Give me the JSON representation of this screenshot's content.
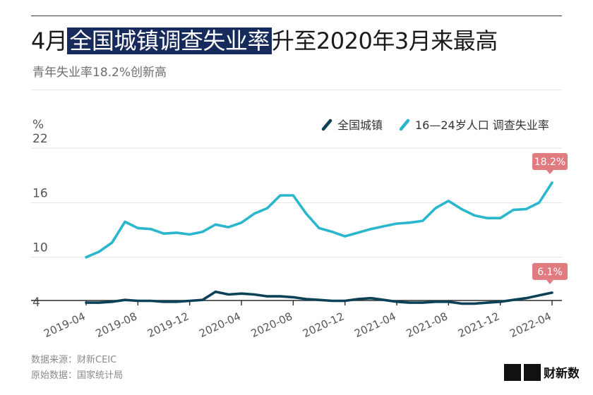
{
  "header": {
    "title_prefix": "4月",
    "title_highlight": "全国城镇调查失业率",
    "title_suffix": "升至2020年3月来最高",
    "subtitle": "青年失业率18.2%创新高"
  },
  "footer": {
    "source_line": "数据来源：财新CEIC",
    "original_line": "原始数据：国家统计局"
  },
  "logo": {
    "text": "财新数据"
  },
  "colors": {
    "urban": "#0d4157",
    "youth": "#2ab6cc",
    "callout": "#e07b80",
    "grid": "#e3e3e3",
    "tick": "#555555"
  },
  "chart_data": {
    "type": "line",
    "y_unit_label": "%",
    "ylim": [
      4,
      22
    ],
    "yticks": [
      4,
      10,
      16,
      22
    ],
    "x": [
      "2019-04",
      "2019-05",
      "2019-06",
      "2019-07",
      "2019-08",
      "2019-09",
      "2019-10",
      "2019-11",
      "2019-12",
      "2020-01",
      "2020-02",
      "2020-03",
      "2020-04",
      "2020-05",
      "2020-06",
      "2020-07",
      "2020-08",
      "2020-09",
      "2020-10",
      "2020-11",
      "2020-12",
      "2021-01",
      "2021-02",
      "2021-03",
      "2021-04",
      "2021-05",
      "2021-06",
      "2021-07",
      "2021-08",
      "2021-09",
      "2021-10",
      "2021-11",
      "2021-12",
      "2022-01",
      "2022-02",
      "2022-03",
      "2022-04"
    ],
    "xtick_labels": [
      "2019-04",
      "2019-08",
      "2019-12",
      "2020-04",
      "2020-08",
      "2020-12",
      "2021-04",
      "2021-08",
      "2021-12",
      "2022-04"
    ],
    "grid": true,
    "legend_position": "top-right",
    "series": [
      {
        "name": "全国城镇",
        "color_key": "urban",
        "values": [
          5.0,
          5.0,
          5.1,
          5.3,
          5.2,
          5.2,
          5.1,
          5.1,
          5.2,
          5.3,
          6.2,
          5.9,
          6.0,
          5.9,
          5.7,
          5.7,
          5.6,
          5.4,
          5.3,
          5.2,
          5.2,
          5.4,
          5.5,
          5.3,
          5.1,
          5.0,
          5.0,
          5.1,
          5.1,
          4.9,
          4.9,
          5.0,
          5.1,
          5.3,
          5.5,
          5.8,
          6.1
        ],
        "end_label": "6.1%"
      },
      {
        "name": "16—24岁人口 调查失业率",
        "color_key": "youth",
        "values": [
          10.0,
          10.6,
          11.6,
          13.9,
          13.2,
          13.1,
          12.6,
          12.7,
          12.5,
          12.8,
          13.6,
          13.3,
          13.8,
          14.8,
          15.4,
          16.8,
          16.8,
          14.8,
          13.2,
          12.8,
          12.3,
          12.7,
          13.1,
          13.4,
          13.7,
          13.8,
          14.0,
          15.4,
          16.2,
          15.3,
          14.6,
          14.3,
          14.3,
          15.2,
          15.3,
          16.0,
          18.2
        ],
        "end_label": "18.2%"
      }
    ]
  }
}
